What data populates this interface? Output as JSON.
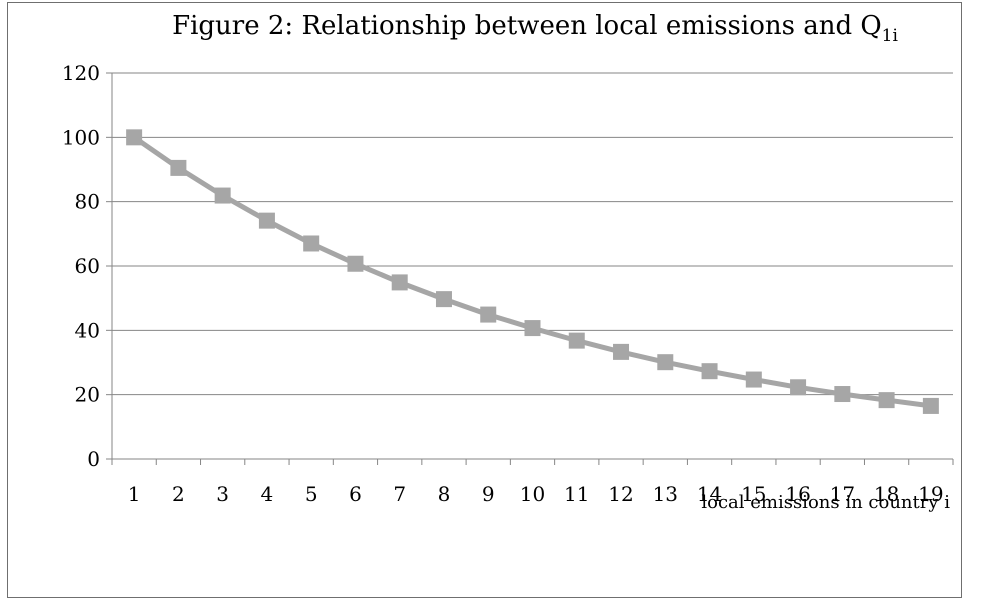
{
  "chart_data": {
    "type": "line",
    "title": "Figure 2: Relationship between local emissions and Q",
    "title_subscript": "1i",
    "xlabel": "local emissions in country i",
    "ylabel": "",
    "ylim": [
      0,
      120
    ],
    "yticks": [
      0,
      20,
      40,
      60,
      80,
      100,
      120
    ],
    "categories": [
      "1",
      "2",
      "3",
      "4",
      "5",
      "6",
      "7",
      "8",
      "9",
      "10",
      "11",
      "12",
      "13",
      "14",
      "15",
      "16",
      "17",
      "18",
      "19"
    ],
    "series": [
      {
        "values": [
          100,
          90.5,
          81.9,
          74.1,
          67.0,
          60.7,
          54.9,
          49.7,
          44.9,
          40.7,
          36.8,
          33.3,
          30.1,
          27.3,
          24.7,
          22.3,
          20.2,
          18.3,
          16.5
        ],
        "color": "#a6a6a6",
        "marker": "square"
      }
    ],
    "grid": true,
    "gridline_color": "#868686",
    "legend": "none"
  }
}
